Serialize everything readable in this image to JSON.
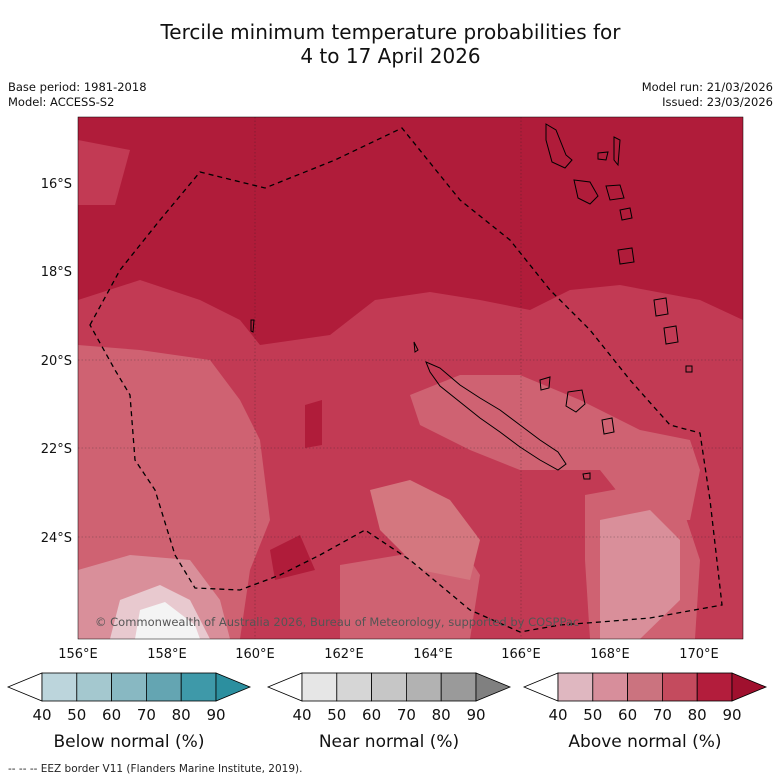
{
  "title_line1": "Tercile minimum temperature probabilities for",
  "title_line2": "4 to 17 April 2026",
  "base_period": "Base period: 1981-2018",
  "model": "Model: ACCESS-S2",
  "model_run": "Model run: 21/03/2026",
  "issued": "Issued: 23/03/2026",
  "copyright": "© Commonwealth of Australia 2026, Bureau of Meteorology, supported by COSPPac",
  "lon_ticks": [
    "156°E",
    "158°E",
    "160°E",
    "162°E",
    "164°E",
    "166°E",
    "168°E",
    "170°E"
  ],
  "lat_ticks": [
    "16°S",
    "18°S",
    "20°S",
    "22°S",
    "24°S"
  ],
  "colorbars": [
    {
      "title": "Below normal (%)",
      "ticks": [
        "40",
        "50",
        "60",
        "70",
        "80",
        "90"
      ],
      "colors": [
        "#ffffff",
        "#bcd5dc",
        "#a4c8cf",
        "#88b8c2",
        "#64a5b2",
        "#3e99a9",
        "#2c8f9f"
      ]
    },
    {
      "title": "Near normal (%)",
      "ticks": [
        "40",
        "50",
        "60",
        "70",
        "80",
        "90"
      ],
      "colors": [
        "#ffffff",
        "#e6e6e6",
        "#d6d6d6",
        "#c6c6c6",
        "#b2b2b2",
        "#9a9a9a",
        "#808080"
      ]
    },
    {
      "title": "Above normal (%)",
      "ticks": [
        "40",
        "50",
        "60",
        "70",
        "80",
        "90"
      ],
      "colors": [
        "#ffffff",
        "#dfb7c0",
        "#d78e9b",
        "#cb737f",
        "#c44b5e",
        "#b31d3c",
        "#a0102e"
      ]
    }
  ],
  "footer": "-- -- -- EEZ border V11 (Flanders Marine Institute, 2019).",
  "palette": {
    "deep_red": "#b01c3a",
    "mid_red": "#c23a54",
    "light_red": "#cf6272",
    "pale_pink": "#d98f9a",
    "near_white": "#f0f0f0"
  }
}
